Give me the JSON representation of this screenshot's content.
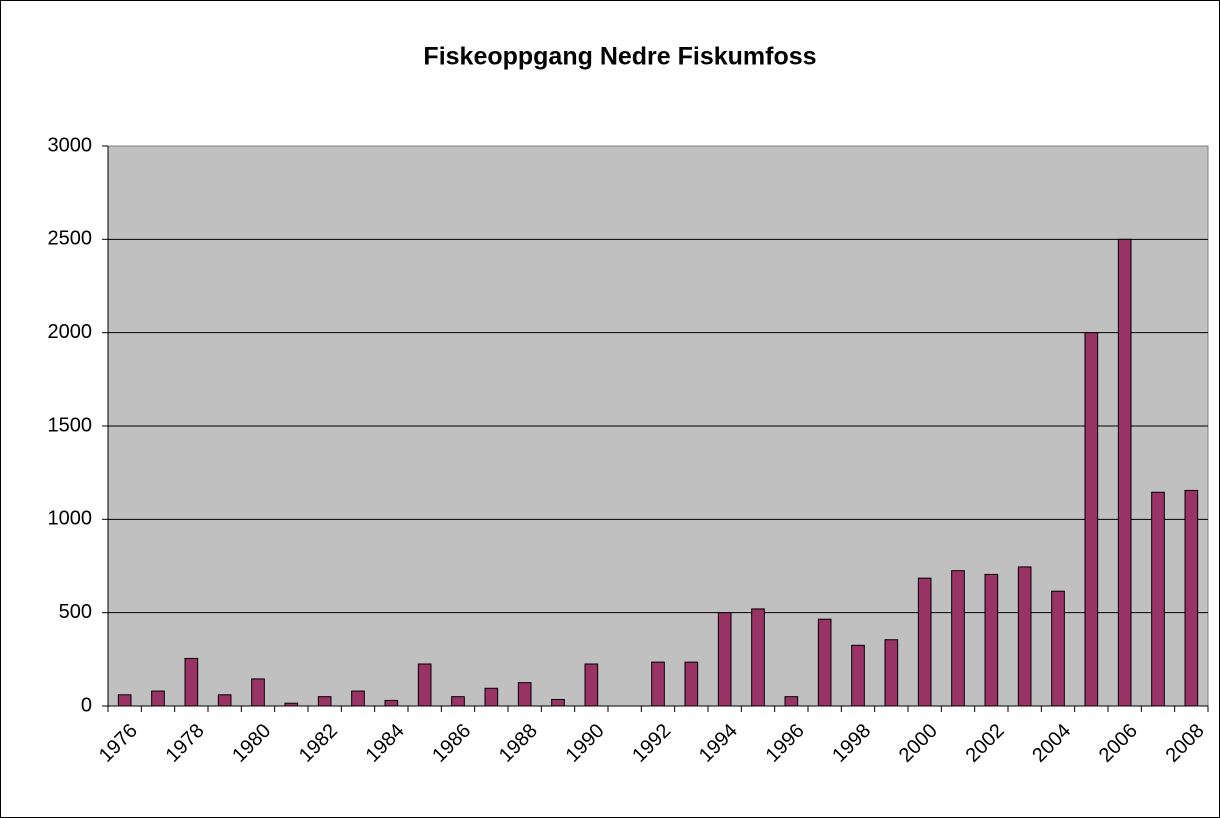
{
  "chart_data": {
    "type": "bar",
    "title": "Fiskeoppgang Nedre Fiskumfoss",
    "categories": [
      "1976",
      null,
      "1978",
      null,
      "1980",
      null,
      "1982",
      null,
      "1984",
      null,
      "1986",
      null,
      "1988",
      null,
      "1990",
      null,
      "1992",
      null,
      "1994",
      null,
      "1996",
      null,
      "1998",
      null,
      "2000",
      null,
      "2002",
      null,
      "2004",
      null,
      "2006",
      null,
      "2008"
    ],
    "values": [
      60,
      80,
      255,
      60,
      145,
      15,
      50,
      80,
      30,
      225,
      50,
      95,
      125,
      35,
      225,
      null,
      235,
      235,
      500,
      520,
      50,
      465,
      325,
      355,
      685,
      725,
      705,
      745,
      615,
      2000,
      2500,
      1145,
      1155
    ],
    "color": "#993366",
    "ylim": [
      0,
      3000
    ],
    "yticks": [
      0,
      500,
      1000,
      1500,
      2000,
      2500,
      3000
    ],
    "grid": true
  }
}
